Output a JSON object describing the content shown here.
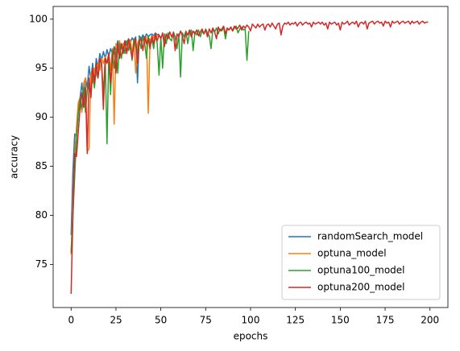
{
  "chart_data": {
    "type": "line",
    "xlabel": "epochs",
    "ylabel": "accuracy",
    "xlim": [
      -10,
      210
    ],
    "xticks": [
      0,
      25,
      50,
      75,
      100,
      125,
      150,
      175,
      200
    ],
    "ylim": [
      70.6,
      101.3
    ],
    "yticks": [
      75,
      80,
      85,
      90,
      95,
      100
    ],
    "legend": "lower right",
    "series": [
      {
        "name": "randomSearch_model",
        "color": "#1f77b4",
        "values": [
          78,
          84.5,
          88.3,
          88,
          90.5,
          92,
          93.5,
          91.5,
          94,
          93,
          95.2,
          93.8,
          95.5,
          93.5,
          96,
          95,
          96.5,
          95.8,
          96.7,
          96,
          96.9,
          96.2,
          97,
          96.5,
          97.2,
          96.8,
          97.8,
          97,
          97.5,
          97.3,
          97.8,
          97.5,
          98,
          97.6,
          98.1,
          97.8,
          98.2,
          93.5,
          98.3,
          98,
          98.4,
          98.1,
          98.5,
          98.2,
          98.4,
          98.5,
          98.3,
          98.6,
          98.4,
          98.5
        ]
      },
      {
        "name": "optuna_model",
        "color": "#ff7f0e",
        "values": [
          76,
          81.5,
          86,
          89,
          91.5,
          92,
          90.5,
          93.5,
          94,
          86.5,
          86.8,
          94.5,
          93.5,
          95,
          94.2,
          95.5,
          94.8,
          96,
          95.5,
          96.2,
          95.5,
          96.5,
          94.8,
          97,
          89.3,
          97.5,
          96.5,
          97.8,
          97,
          97.5,
          96.8,
          97.6,
          97.2,
          97.9,
          96.5,
          98,
          94.5,
          97.5,
          98,
          97.8,
          98.1,
          97.6,
          98.2,
          90.4,
          98,
          97.6,
          98.3,
          97.9,
          98.4,
          98.2
        ]
      },
      {
        "name": "optuna100_model",
        "color": "#2ca02c",
        "values": [
          76.2,
          80,
          84,
          88,
          90.5,
          92,
          90.8,
          93,
          90.5,
          92.8,
          93.5,
          92,
          94.5,
          93,
          95,
          94,
          96,
          95.3,
          92.5,
          96,
          87.3,
          96.5,
          92.3,
          96.8,
          95,
          97,
          94.5,
          97.5,
          96,
          97.2,
          96.5,
          97.8,
          96.8,
          97.5,
          95.8,
          98,
          97.2,
          96.5,
          98,
          97,
          98.2,
          97.5,
          96,
          98.3,
          97.5,
          98,
          97,
          98.5,
          97.5,
          94.3,
          98.2,
          95,
          98.5,
          97.5,
          98.6,
          98,
          97.8,
          98.7,
          98.2,
          97,
          98.5,
          94.1,
          98.6,
          98.2,
          98.8,
          97.5,
          98.6,
          98.9,
          96.8,
          98.7,
          98.4,
          98.9,
          98.2,
          98.8,
          98.5,
          99,
          98.6,
          98.3,
          97,
          99,
          98.7,
          99.1,
          98.5,
          99,
          98.8,
          99.2,
          98,
          99,
          98.9,
          99.2,
          98.8,
          99.1,
          99.3,
          98.6,
          99,
          99.2,
          98.9,
          99,
          95.8,
          98.8
        ]
      },
      {
        "name": "optuna200_model",
        "color": "#d62728",
        "values": [
          72,
          80,
          86.3,
          86,
          88.5,
          91,
          92.5,
          91,
          93,
          86.3,
          94,
          92,
          95,
          93.5,
          95.5,
          94,
          96,
          95.5,
          90.8,
          96,
          95.5,
          96.5,
          93.5,
          96,
          97,
          94.5,
          97.5,
          96,
          97.5,
          96.5,
          97.8,
          96.5,
          98,
          97,
          96,
          97.5,
          98,
          95.5,
          97.8,
          98,
          96.8,
          98.2,
          97.5,
          98,
          97,
          98.3,
          97.5,
          98.5,
          97.8,
          98.4,
          98,
          98.6,
          97.2,
          98.5,
          98,
          98.7,
          98.2,
          98.6,
          96.8,
          98.5,
          98.2,
          98.8,
          98.3,
          97.5,
          98.7,
          98.4,
          98.9,
          98.2,
          98.8,
          98.5,
          98.9,
          98.3,
          98.7,
          99,
          98.5,
          98.9,
          98.2,
          99,
          98.6,
          99.1,
          98.7,
          98,
          99.2,
          98.8,
          99,
          99.3,
          98.5,
          99.1,
          98.9,
          99.2,
          98.8,
          99.3,
          99,
          99.1,
          99.4,
          98.9,
          99.3,
          99.1,
          99.4,
          99.2,
          98.8,
          99.5,
          99.3,
          99.1,
          99.5,
          99.2,
          99.4,
          99.5,
          98.9,
          99.4,
          99.5,
          99.2,
          99.6,
          99.3,
          99,
          99.5,
          99.6,
          98.4,
          99.3,
          99.6,
          99.5,
          99.7,
          99.4,
          99.6,
          99.5,
          99.7,
          99.3,
          99.6,
          99.7,
          99.4,
          99.6,
          99.7,
          99.5,
          99.6,
          99.2,
          99.7,
          99.5,
          99.6,
          99.7,
          99.5,
          99.7,
          99.4,
          99.6,
          99,
          99.7,
          99.5,
          99.6,
          99.7,
          99.4,
          99.6,
          98.9,
          99.7,
          99.5,
          99.6,
          99.8,
          99.4,
          99.6,
          99.7,
          99.5,
          99.8,
          99.2,
          99.6,
          99.7,
          99.5,
          99.8,
          99,
          99.6,
          99.7,
          99.8,
          99.5,
          99.7,
          99.8,
          99.6,
          99.7,
          99.3,
          99.8,
          99.6,
          99.7,
          99.2,
          99.8,
          99.6,
          99.7,
          99.8,
          99.5,
          99.7,
          99.8,
          99.6,
          99.7,
          99.8,
          99.5,
          99.8,
          99.6,
          99.7,
          99.8,
          99.5,
          99.7,
          99.8,
          99.6,
          99.7,
          99.7
        ]
      }
    ]
  }
}
